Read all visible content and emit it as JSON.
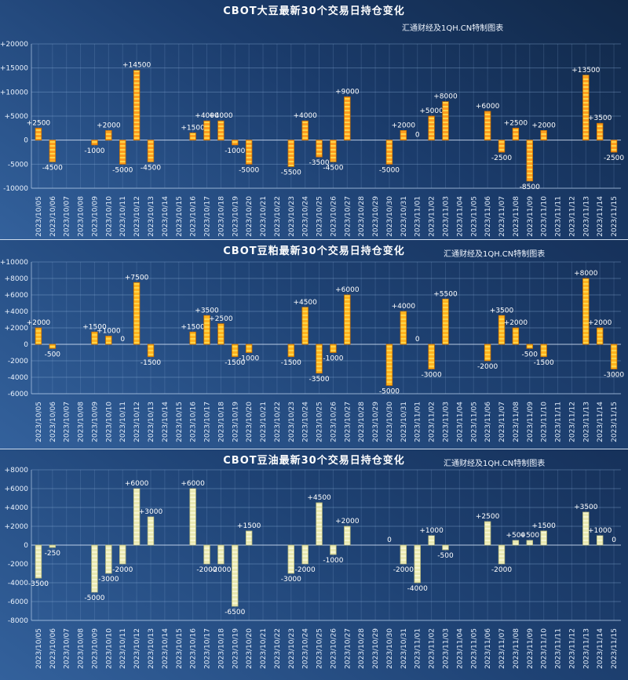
{
  "chart_data": [
    {
      "type": "bar",
      "title": "CBOT大豆最新30个交易日持仓变化",
      "watermark": "汇通财经及1QH.CN特制图表",
      "ylim": [
        -10000,
        20000
      ],
      "yticks": [
        20000,
        15000,
        10000,
        5000,
        0,
        -5000,
        -10000
      ],
      "ytick_labels": [
        "+20000",
        "+15000",
        "+10000",
        "+5000",
        "0",
        "-5000",
        "-10000"
      ],
      "grid": true,
      "colors": {
        "fill": "#ff9d1e",
        "stripe": "#ffd54a",
        "stroke": "#c96f00"
      },
      "categories": [
        "2023/10/05",
        "2023/10/06",
        "2023/10/07",
        "2023/10/08",
        "2023/10/09",
        "2023/10/10",
        "2023/10/11",
        "2023/10/12",
        "2023/10/13",
        "2023/10/14",
        "2023/10/15",
        "2023/10/16",
        "2023/10/17",
        "2023/10/18",
        "2023/10/19",
        "2023/10/20",
        "2023/10/21",
        "2023/10/22",
        "2023/10/23",
        "2023/10/24",
        "2023/10/25",
        "2023/10/26",
        "2023/10/27",
        "2023/10/28",
        "2023/10/29",
        "2023/10/30",
        "2023/10/31",
        "2023/11/01",
        "2023/11/02",
        "2023/11/03",
        "2023/11/04",
        "2023/11/05",
        "2023/11/06",
        "2023/11/07",
        "2023/11/08",
        "2023/11/09",
        "2023/11/10",
        "2023/11/11",
        "2023/11/12",
        "2023/11/13",
        "2023/11/14",
        "2023/11/15"
      ],
      "values": [
        2500,
        -4500,
        null,
        null,
        -1000,
        2000,
        -5000,
        14500,
        -4500,
        null,
        null,
        1500,
        4000,
        4000,
        -1000,
        -5000,
        null,
        null,
        -5500,
        4000,
        -3500,
        -4500,
        9000,
        null,
        null,
        -5000,
        2000,
        0,
        5000,
        8000,
        null,
        null,
        6000,
        -2500,
        2500,
        -8500,
        2000,
        null,
        null,
        13500,
        3500,
        -2500
      ],
      "labels": [
        "+2500",
        "-4500",
        null,
        null,
        "-1000",
        "+2000",
        "-5000",
        "+14500",
        "-4500",
        null,
        null,
        "+1500",
        "+4000",
        "+4000",
        "-1000",
        "-5000",
        null,
        null,
        "-5500",
        "+4000",
        "-3500",
        "-4500",
        "+9000",
        null,
        null,
        "-5000",
        "+2000",
        "0",
        "+5000",
        "+8000",
        null,
        null,
        "+6000",
        "-2500",
        "+2500",
        "-8500",
        "+2000",
        null,
        null,
        "+13500",
        "+3500",
        "-2500"
      ]
    },
    {
      "type": "bar",
      "title": "CBOT豆粕最新30个交易日持仓变化",
      "watermark": "汇通财经及1QH.CN特制图表",
      "ylim": [
        -6000,
        10000
      ],
      "yticks": [
        10000,
        8000,
        6000,
        4000,
        2000,
        0,
        -2000,
        -4000,
        -6000
      ],
      "ytick_labels": [
        "+10000",
        "+8000",
        "+6000",
        "+4000",
        "+2000",
        "0",
        "-2000",
        "-4000",
        "-6000"
      ],
      "grid": true,
      "colors": {
        "fill": "#ffb31e",
        "stripe": "#ffd54a",
        "stroke": "#c96f00"
      },
      "categories": [
        "2023/10/05",
        "2023/10/06",
        "2023/10/07",
        "2023/10/08",
        "2023/10/09",
        "2023/10/10",
        "2023/10/11",
        "2023/10/12",
        "2023/10/13",
        "2023/10/14",
        "2023/10/15",
        "2023/10/16",
        "2023/10/17",
        "2023/10/18",
        "2023/10/19",
        "2023/10/20",
        "2023/10/21",
        "2023/10/22",
        "2023/10/23",
        "2023/10/24",
        "2023/10/25",
        "2023/10/26",
        "2023/10/27",
        "2023/10/28",
        "2023/10/29",
        "2023/10/30",
        "2023/10/31",
        "2023/11/01",
        "2023/11/02",
        "2023/11/03",
        "2023/11/04",
        "2023/11/05",
        "2023/11/06",
        "2023/11/07",
        "2023/11/08",
        "2023/11/09",
        "2023/11/10",
        "2023/11/11",
        "2023/11/12",
        "2023/11/13",
        "2023/11/14",
        "2023/11/15"
      ],
      "values": [
        2000,
        -500,
        null,
        null,
        1500,
        1000,
        0,
        7500,
        -1500,
        null,
        null,
        1500,
        3500,
        2500,
        -1500,
        -1000,
        null,
        null,
        -1500,
        4500,
        -3500,
        -1000,
        6000,
        null,
        null,
        -5000,
        4000,
        0,
        -3000,
        5500,
        null,
        null,
        -2000,
        3500,
        2000,
        -500,
        -1500,
        null,
        null,
        8000,
        2000,
        -3000
      ],
      "labels": [
        "+2000",
        "-500",
        null,
        null,
        "+1500",
        "+1000",
        "0",
        "+7500",
        "-1500",
        null,
        null,
        "+1500",
        "+3500",
        "+2500",
        "-1500",
        "-1000",
        null,
        null,
        "-1500",
        "+4500",
        "-3500",
        "-1000",
        "+6000",
        null,
        null,
        "-5000",
        "+4000",
        "0",
        "-3000",
        "+5500",
        null,
        null,
        "-2000",
        "+3500",
        "+2000",
        "-500",
        "-1500",
        null,
        null,
        "+8000",
        "+2000",
        "-3000"
      ]
    },
    {
      "type": "bar",
      "title": "CBOT豆油最新30个交易日持仓变化",
      "watermark": "汇通财经及1QH.CN特制图表",
      "ylim": [
        -8000,
        8000
      ],
      "yticks": [
        8000,
        6000,
        4000,
        2000,
        0,
        -2000,
        -4000,
        -6000,
        -8000
      ],
      "ytick_labels": [
        "+8000",
        "+6000",
        "+4000",
        "+2000",
        "0",
        "-2000",
        "-4000",
        "-6000",
        "-8000"
      ],
      "grid": true,
      "colors": {
        "fill": "#e9e9b2",
        "stripe": "#f6f6d2",
        "stroke": "#b9b97e"
      },
      "categories": [
        "2023/10/05",
        "2023/10/06",
        "2023/10/07",
        "2023/10/08",
        "2023/10/09",
        "2023/10/10",
        "2023/10/11",
        "2023/10/12",
        "2023/10/13",
        "2023/10/14",
        "2023/10/15",
        "2023/10/16",
        "2023/10/17",
        "2023/10/18",
        "2023/10/19",
        "2023/10/20",
        "2023/10/21",
        "2023/10/22",
        "2023/10/23",
        "2023/10/24",
        "2023/10/25",
        "2023/10/26",
        "2023/10/27",
        "2023/10/28",
        "2023/10/29",
        "2023/10/30",
        "2023/10/31",
        "2023/11/01",
        "2023/11/02",
        "2023/11/03",
        "2023/11/04",
        "2023/11/05",
        "2023/11/06",
        "2023/11/07",
        "2023/11/08",
        "2023/11/09",
        "2023/11/10",
        "2023/11/11",
        "2023/11/12",
        "2023/11/13",
        "2023/11/14",
        "2023/11/15"
      ],
      "values": [
        -3500,
        -250,
        null,
        null,
        -5000,
        -3000,
        -2000,
        6000,
        3000,
        null,
        null,
        6000,
        -2000,
        -2000,
        -6500,
        1500,
        null,
        null,
        -3000,
        -2000,
        4500,
        -1000,
        2000,
        null,
        null,
        0,
        -2000,
        -4000,
        1000,
        -500,
        null,
        null,
        2500,
        -2000,
        500,
        500,
        1500,
        null,
        null,
        3500,
        1000,
        0
      ],
      "labels": [
        "-3500",
        "-250",
        null,
        null,
        "-5000",
        "-3000",
        "-2000",
        "+6000",
        "+3000",
        null,
        null,
        "+6000",
        "-2000",
        "-2000",
        "-6500",
        "+1500",
        null,
        null,
        "-3000",
        "-2000",
        "+4500",
        "-1000",
        "+2000",
        null,
        null,
        "0",
        "-2000",
        "-4000",
        "+1000",
        "-500",
        null,
        null,
        "+2500",
        "-2000",
        "+500",
        "+500",
        "+1500",
        null,
        null,
        "+3500",
        "+1000",
        "0"
      ]
    }
  ]
}
